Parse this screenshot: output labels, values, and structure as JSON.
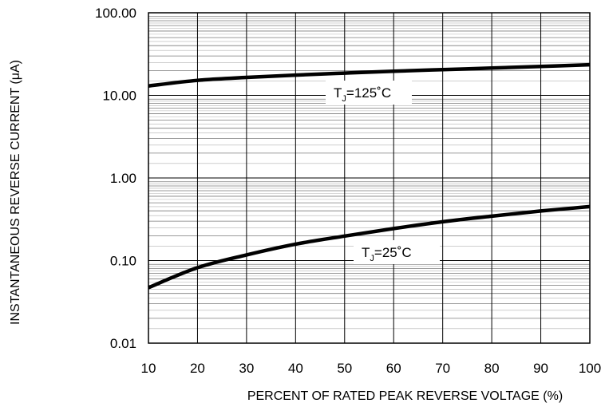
{
  "chart_data": {
    "type": "line",
    "title": "",
    "xlabel": "PERCENT OF RATED PEAK REVERSE VOLTAGE (%)",
    "ylabel": "INSTANTANEOUS REVERSE CURRENT (μA)",
    "xlim": [
      10,
      100
    ],
    "ylim": [
      0.01,
      100
    ],
    "yscale": "log",
    "grid": true,
    "x_ticks": [
      "10",
      "20",
      "30",
      "40",
      "50",
      "60",
      "70",
      "80",
      "90",
      "100"
    ],
    "y_ticks": [
      "0.01",
      "0.10",
      "1.00",
      "10.00",
      "100.00"
    ],
    "series": [
      {
        "x": [
          10,
          20,
          30,
          40,
          50,
          60,
          70,
          80,
          90,
          100
        ],
        "values": [
          13.0,
          15.2,
          16.5,
          17.6,
          18.6,
          19.6,
          20.5,
          21.4,
          22.4,
          23.5
        ]
      },
      {
        "x": [
          10,
          20,
          30,
          40,
          50,
          60,
          70,
          80,
          90,
          100
        ],
        "values": [
          0.047,
          0.082,
          0.117,
          0.158,
          0.198,
          0.244,
          0.295,
          0.345,
          0.398,
          0.45
        ]
      }
    ],
    "annotations": [
      {
        "main": "T",
        "sub": "J",
        "rest": "=125˚C"
      },
      {
        "main": "T",
        "sub": "J",
        "rest": "=25˚C"
      }
    ]
  }
}
